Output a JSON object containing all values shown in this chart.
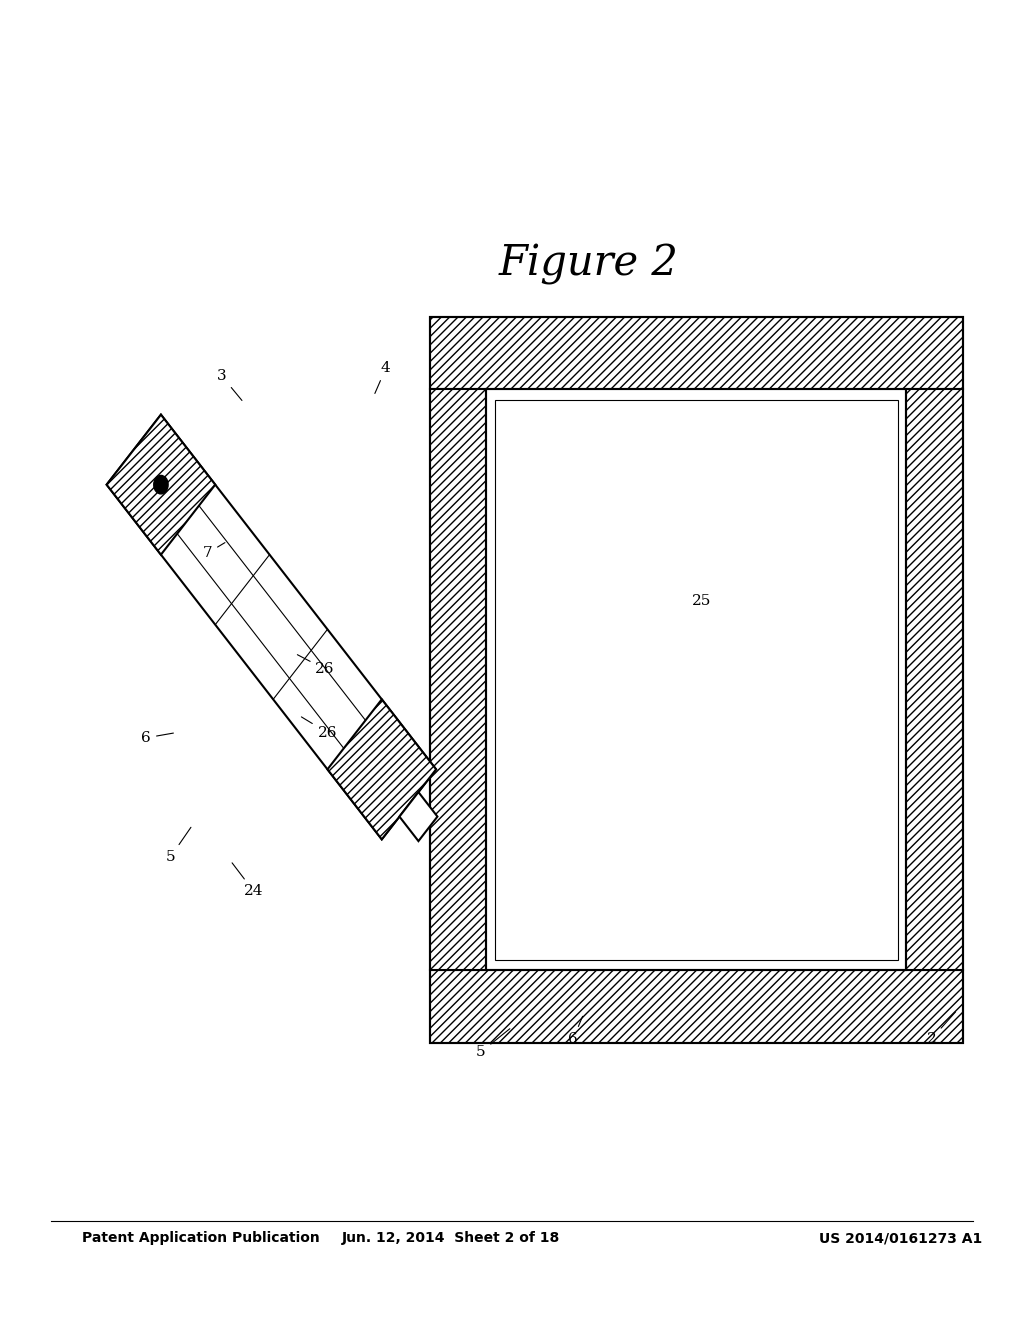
{
  "bg_color": "#ffffff",
  "line_color": "#000000",
  "header_left": "Patent Application Publication",
  "header_center": "Jun. 12, 2014  Sheet 2 of 18",
  "header_right": "US 2014/0161273 A1",
  "figure_label": "Figure 2"
}
